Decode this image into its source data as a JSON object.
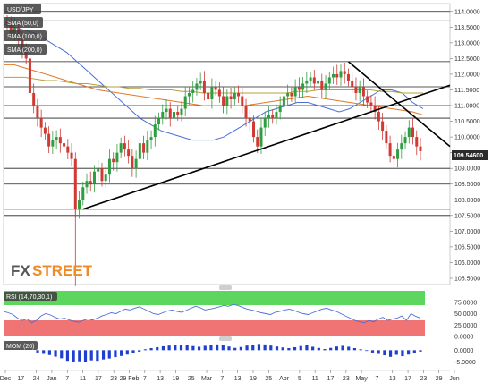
{
  "chart_data": [
    {
      "type": "candlestick",
      "title": "USD/JPY",
      "indicator_labels": [
        "SMA (50,0)",
        "SMA (100,0)",
        "SMA (200,0)"
      ],
      "watermark": {
        "fx": "FX",
        "street": "STREET"
      },
      "price_label": "109.54600",
      "y_ticks": [
        "114.0000",
        "113.5000",
        "113.0000",
        "112.5000",
        "112.0000",
        "111.5000",
        "111.0000",
        "110.5000",
        "110.0000",
        "109.5000",
        "109.0000",
        "108.5000",
        "108.0000",
        "107.5000",
        "107.0000",
        "106.5000",
        "106.0000",
        "105.5000"
      ],
      "ylim": [
        105.3,
        114.25
      ],
      "x_ticks": [
        "Dec",
        "17",
        "24",
        "Jan",
        "7",
        "11",
        "17",
        "23",
        "29 Feb",
        "7",
        "13",
        "19",
        "25",
        "Mar",
        "7",
        "13",
        "19",
        "25",
        "Apr",
        "5",
        "11",
        "17",
        "23",
        "May",
        "7",
        "13",
        "17",
        "23",
        "29",
        "Jun"
      ],
      "horizontal_levels": [
        114.0,
        113.7,
        112.4,
        111.6,
        111.0,
        110.6,
        109.0,
        108.5,
        107.7,
        107.5
      ],
      "trendlines": [
        {
          "from": [
            "early Jan",
            107.7
          ],
          "to": [
            "end of chart",
            111.65
          ]
        },
        {
          "from": [
            "mid Apr",
            112.4
          ],
          "to": [
            "end of chart",
            109.7
          ]
        }
      ],
      "closes": [
        113.6,
        113.3,
        113.5,
        113.1,
        112.8,
        112.5,
        111.4,
        111.0,
        110.6,
        110.3,
        110.1,
        109.7,
        109.9,
        110.0,
        109.8,
        109.7,
        109.5,
        109.3,
        107.7,
        108.0,
        108.4,
        108.6,
        108.5,
        108.9,
        109.0,
        108.6,
        108.8,
        109.3,
        109.2,
        109.5,
        109.8,
        109.6,
        109.4,
        109.0,
        109.3,
        109.8,
        109.5,
        109.9,
        110.0,
        110.4,
        110.6,
        110.8,
        110.9,
        110.6,
        110.8,
        110.7,
        110.9,
        111.3,
        111.4,
        111.5,
        111.7,
        111.8,
        111.4,
        111.2,
        111.6,
        111.5,
        111.3,
        111.0,
        111.3,
        111.2,
        111.4,
        111.3,
        111.0,
        110.6,
        110.5,
        110.0,
        109.7,
        110.3,
        110.6,
        110.7,
        110.6,
        110.8,
        111.0,
        111.3,
        111.4,
        111.3,
        111.6,
        111.5,
        111.7,
        111.8,
        111.9,
        111.7,
        111.8,
        111.5,
        111.7,
        111.9,
        112.0,
        111.9,
        112.1,
        112.0,
        111.8,
        111.6,
        111.4,
        111.6,
        111.3,
        111.1,
        111.0,
        110.8,
        110.5,
        110.2,
        109.8,
        109.4,
        109.3,
        109.6,
        109.8,
        110.0,
        110.3,
        110.0,
        109.7,
        109.55
      ],
      "sma": [
        {
          "name": "SMA (50,0)",
          "color": "#4b6fd6",
          "values": [
            113.6,
            113.5,
            113.4,
            113.3,
            113.1,
            112.9,
            112.7,
            112.4,
            112.1,
            111.8,
            111.5,
            111.2,
            110.9,
            110.6,
            110.4,
            110.2,
            110.1,
            110.0,
            109.9,
            109.9,
            109.9,
            110.0,
            110.2,
            110.4,
            110.6,
            110.8,
            110.9,
            111.0,
            111.1,
            111.1,
            111.0,
            110.9,
            110.8,
            110.9,
            111.1,
            111.3,
            111.5,
            111.5,
            111.4,
            111.1,
            110.9
          ]
        },
        {
          "name": "SMA (100,0)",
          "color": "#e07a2a",
          "values": [
            112.3,
            112.3,
            112.2,
            112.1,
            112.0,
            111.9,
            111.8,
            111.7,
            111.6,
            111.5,
            111.45,
            111.4,
            111.35,
            111.3,
            111.25,
            111.2,
            111.15,
            111.1,
            111.05,
            111.0,
            111.0,
            111.0,
            111.0,
            111.0,
            111.05,
            111.1,
            111.15,
            111.2,
            111.25,
            111.3,
            111.25,
            111.2,
            111.15,
            111.1,
            111.05,
            111.0,
            110.95,
            110.9,
            110.85,
            110.8,
            110.7
          ]
        },
        {
          "name": "SMA (200,0)",
          "color": "#b5a13a",
          "values": [
            111.9,
            111.9,
            111.9,
            111.85,
            111.8,
            111.8,
            111.75,
            111.7,
            111.7,
            111.65,
            111.6,
            111.6,
            111.55,
            111.55,
            111.5,
            111.5,
            111.5,
            111.45,
            111.45,
            111.4,
            111.4,
            111.4,
            111.4,
            111.4,
            111.4,
            111.4,
            111.4,
            111.4,
            111.45,
            111.45,
            111.5,
            111.5,
            111.5,
            111.5,
            111.5,
            111.5,
            111.45,
            111.45,
            111.4,
            111.4,
            111.4
          ]
        }
      ]
    },
    {
      "type": "line",
      "title": "RSI (14,70,30,1)",
      "y_ticks": [
        "75.0000",
        "50.0000",
        "25.0000",
        "0.0000"
      ],
      "ylim": [
        0,
        100
      ],
      "overbought": 70,
      "oversold": 30,
      "values": [
        55,
        52,
        48,
        40,
        35,
        38,
        30,
        35,
        45,
        50,
        47,
        42,
        38,
        40,
        36,
        33,
        31,
        35,
        38,
        36,
        40,
        45,
        48,
        52,
        50,
        55,
        60,
        58,
        62,
        65,
        60,
        55,
        50,
        48,
        52,
        56,
        58,
        55,
        53,
        57,
        62,
        66,
        63,
        58,
        60,
        62,
        65,
        68,
        66,
        70,
        68,
        64,
        60,
        58,
        55,
        52,
        50,
        48,
        53,
        55,
        58,
        60,
        57,
        53,
        50,
        48,
        52,
        56,
        60,
        62,
        58,
        55,
        50,
        45,
        40,
        35,
        32,
        30,
        35,
        32,
        38,
        42,
        35,
        38,
        40,
        45,
        35,
        50,
        44,
        40
      ]
    },
    {
      "type": "bar",
      "title": "MOM (20)",
      "y_ticks": [
        "0.0000",
        "-5.0000"
      ],
      "ylim": [
        -8,
        4
      ],
      "values": [
        -1.0,
        -1.6,
        -2.1,
        -2.8,
        -3.5,
        -4.6,
        -5.2,
        -4.8,
        -5.0,
        -4.4,
        -4.6,
        -4.0,
        -3.6,
        -3.0,
        -2.5,
        -1.9,
        -1.2,
        -0.6,
        0.4,
        0.9,
        1.3,
        1.7,
        2.0,
        2.2,
        2.4,
        2.1,
        1.8,
        1.5,
        1.9,
        2.2,
        2.5,
        2.2,
        1.6,
        1.0,
        1.4,
        2.0,
        2.4,
        2.7,
        2.5,
        2.0,
        1.6,
        1.2,
        0.9,
        1.3,
        1.8,
        2.1,
        1.5,
        1.0,
        0.5,
        1.0,
        1.6,
        1.9,
        1.5,
        0.9,
        0.4,
        -0.3,
        -1.0,
        -1.6,
        -2.2,
        -2.9,
        -2.0,
        -2.6,
        -1.9,
        -1.2,
        -0.6
      ]
    }
  ]
}
